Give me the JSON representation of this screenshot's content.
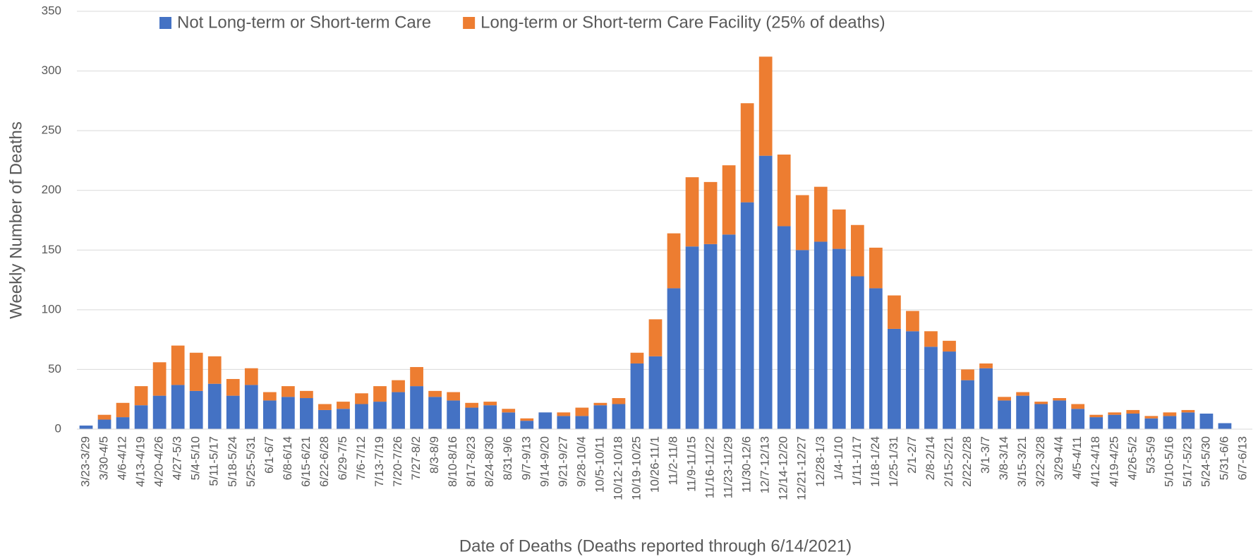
{
  "chart_data": {
    "type": "stacked_bar",
    "x_label": "Date of Deaths (Deaths reported through 6/14/2021)",
    "y_label": "Weekly Number of Deaths",
    "categories": [
      "3/23-3/29",
      "3/30-4/5",
      "4/6-4/12",
      "4/13-4/19",
      "4/20-4/26",
      "4/27-5/3",
      "5/4-5/10",
      "5/11-5/17",
      "5/18-5/24",
      "5/25-5/31",
      "6/1-6/7",
      "6/8-6/14",
      "6/15-6/21",
      "6/22-6/28",
      "6/29-7/5",
      "7/6-7/12",
      "7/13-7/19",
      "7/20-7/26",
      "7/27-8/2",
      "8/3-8/9",
      "8/10-8/16",
      "8/17-8/23",
      "8/24-8/30",
      "8/31-9/6",
      "9/7-9/13",
      "9/14-9/20",
      "9/21-9/27",
      "9/28-10/4",
      "10/5-10/11",
      "10/12-10/18",
      "10/19-10/25",
      "10/26-11/1",
      "11/2-11/8",
      "11/9-11/15",
      "11/16-11/22",
      "11/23-11/29",
      "11/30-12/6",
      "12/7-12/13",
      "12/14-12/20",
      "12/21-12/27",
      "12/28-1/3",
      "1/4-1/10",
      "1/11-1/17",
      "1/18-1/24",
      "1/25-1/31",
      "2/1-2/7",
      "2/8-2/14",
      "2/15-2/21",
      "2/22-2/28",
      "3/1-3/7",
      "3/8-3/14",
      "3/15-3/21",
      "3/22-3/28",
      "3/29-4/4",
      "4/5-4/11",
      "4/12-4/18",
      "4/19-4/25",
      "4/26-5/2",
      "5/3-5/9",
      "5/10-5/16",
      "5/17-5/23",
      "5/24-5/30",
      "5/31-6/6",
      "6/7-6/13"
    ],
    "series": [
      {
        "name": "Not Long-term or Short-term Care",
        "color": "#4472c4",
        "values": [
          3,
          8,
          10,
          20,
          28,
          37,
          32,
          38,
          28,
          37,
          24,
          27,
          26,
          16,
          17,
          21,
          23,
          31,
          36,
          27,
          24,
          18,
          20,
          14,
          7,
          14,
          11,
          11,
          20,
          21,
          55,
          61,
          118,
          153,
          155,
          163,
          190,
          229,
          170,
          150,
          157,
          151,
          128,
          118,
          84,
          82,
          69,
          65,
          41,
          51,
          24,
          28,
          21,
          24,
          17,
          10,
          12,
          13,
          9,
          11,
          14,
          13,
          5,
          0
        ]
      },
      {
        "name": "Long-term or Short-term Care Facility (25% of deaths)",
        "color": "#ed7d31",
        "values": [
          0,
          4,
          12,
          16,
          28,
          33,
          32,
          23,
          14,
          14,
          7,
          9,
          6,
          5,
          6,
          9,
          13,
          10,
          16,
          5,
          7,
          4,
          3,
          3,
          2,
          0,
          3,
          7,
          2,
          5,
          9,
          31,
          46,
          58,
          52,
          58,
          83,
          83,
          60,
          46,
          46,
          33,
          43,
          34,
          28,
          17,
          13,
          9,
          9,
          4,
          3,
          3,
          2,
          2,
          4,
          2,
          2,
          3,
          2,
          3,
          2,
          0,
          0,
          0
        ]
      }
    ],
    "ylim": [
      0,
      350
    ],
    "yticks": [
      0,
      50,
      100,
      150,
      200,
      250,
      300,
      350
    ],
    "grid": true,
    "legend": "top"
  }
}
